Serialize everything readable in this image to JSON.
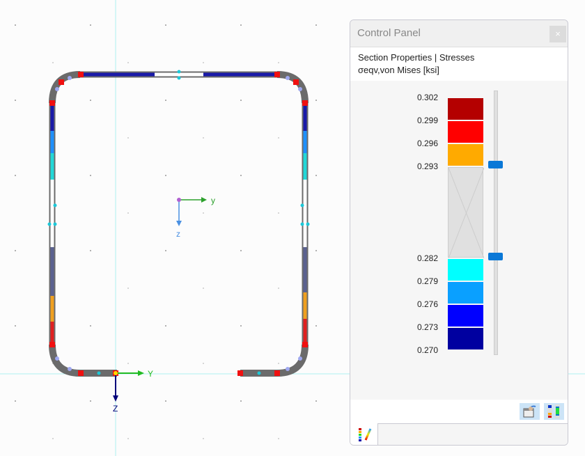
{
  "viewport": {
    "axes_center": {
      "y_label": "y",
      "z_label": "z"
    },
    "axes_origin": {
      "y_label": "Y",
      "z_label": "Z"
    }
  },
  "control_panel": {
    "title": "Control Panel",
    "close_icon": "close-icon",
    "heading": "Section Properties | Stresses",
    "quantity": "σeqv,von Mises [ksi]",
    "legend": {
      "labels": [
        "0.302",
        "0.299",
        "0.296",
        "0.293",
        "0.282",
        "0.279",
        "0.276",
        "0.273",
        "0.270"
      ],
      "colors": [
        "#b40000",
        "#ff0000",
        "#ffaa00",
        "#e0e0e0",
        "#00ffff",
        "#0aa0ff",
        "#0000ff",
        "#0000a0"
      ],
      "slider_upper": "0.293",
      "slider_lower": "0.282"
    },
    "tools": [
      "display-settings-icon",
      "color-scale-icon"
    ],
    "tab_icon": "color-legend-edit-icon"
  }
}
